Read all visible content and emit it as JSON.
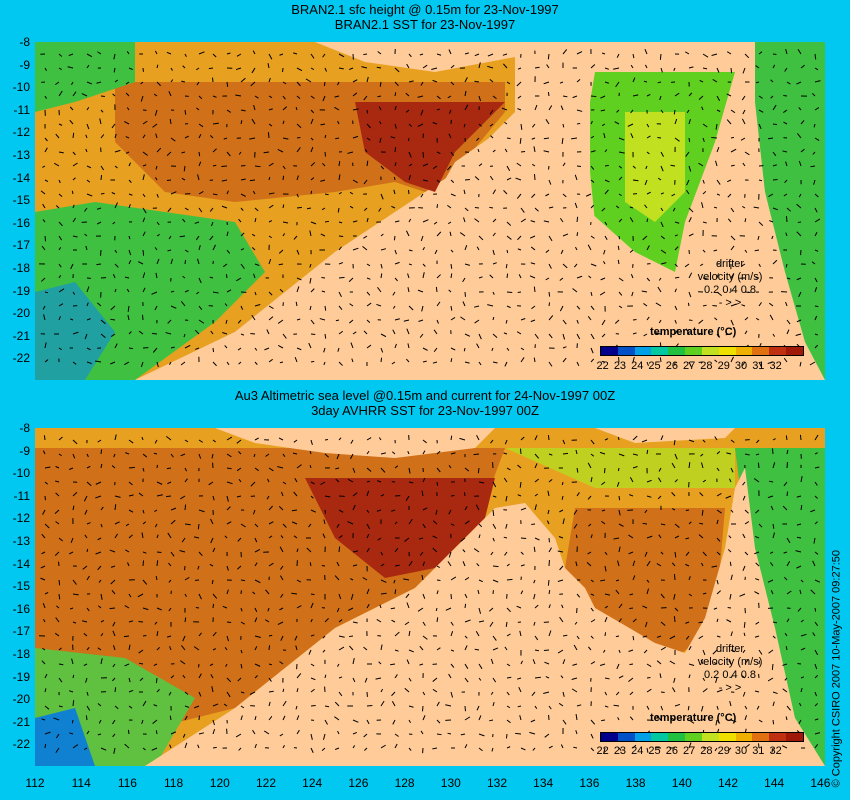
{
  "panel1": {
    "title1": "BRAN2.1 sfc height @ 0.15m for 23-Nov-1997",
    "title2": "BRAN2.1 SST for 23-Nov-1997"
  },
  "panel2": {
    "title1": "Au3 Altimetric sea level  @0.15m and current for 24-Nov-1997 00Z",
    "title2": "3day AVHRR SST for 23-Nov-1997 00Z"
  },
  "y_ticks": [
    "-8",
    "-9",
    "-10",
    "-11",
    "-12",
    "-13",
    "-14",
    "-15",
    "-16",
    "-17",
    "-18",
    "-19",
    "-20",
    "-21",
    "-22"
  ],
  "x_ticks": [
    "112",
    "114",
    "116",
    "118",
    "120",
    "122",
    "124",
    "126",
    "128",
    "130",
    "132",
    "134",
    "136",
    "138",
    "140",
    "142",
    "144",
    "146"
  ],
  "colorbar": {
    "title": "temperature (°C)",
    "ticks": [
      "22",
      "23",
      "24",
      "25",
      "26",
      "27",
      "28",
      "29",
      "30",
      "31",
      "32"
    ],
    "colors": [
      "#00008c",
      "#0050c8",
      "#00a0e6",
      "#00c8a0",
      "#20c040",
      "#60d020",
      "#c0e020",
      "#f0e000",
      "#f0b000",
      "#e07010",
      "#c03010",
      "#a01808"
    ]
  },
  "drifter": {
    "label": "drifter",
    "velocity": "velocity (m/s)",
    "scale": "0.2 0.4 0.8",
    "arrows": "-   >   >"
  },
  "copyright": "© Copyright CSIRO 2007   10-May-2007 09:27:50",
  "colors": {
    "background": "#00c8f0",
    "land": "#ffcc99",
    "warm": "#d07018",
    "hot": "#a82810",
    "mid": "#f0b020",
    "cool": "#40c040",
    "cold": "#1080d0"
  }
}
